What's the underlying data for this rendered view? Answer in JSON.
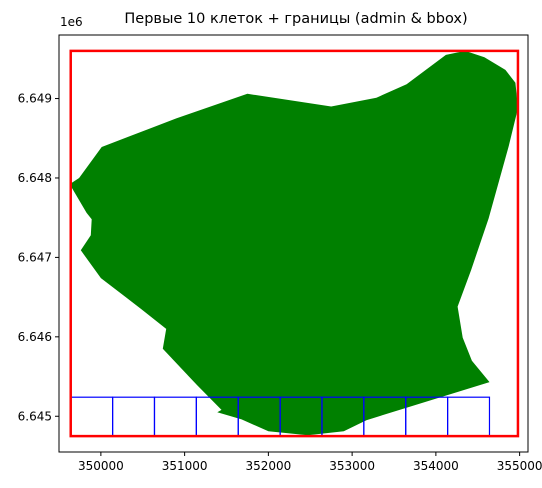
{
  "chart_data": {
    "type": "map",
    "title": "Первые 10 клеток + границы (admin & bbox)",
    "offset_label": "1e6",
    "xlim": [
      349500,
      355100
    ],
    "ylim": [
      6644550,
      6649800
    ],
    "x_ticks": [
      350000,
      351000,
      352000,
      353000,
      354000,
      355000
    ],
    "x_tick_labels": [
      "350000",
      "351000",
      "352000",
      "353000",
      "354000",
      "355000"
    ],
    "y_ticks": [
      6645000,
      6646000,
      6647000,
      6648000,
      6649000
    ],
    "y_tick_labels": [
      "6.645",
      "6.646",
      "6.647",
      "6.648",
      "6.649"
    ],
    "colors": {
      "admin_fill": "#008000",
      "bbox_edge": "#ff0000",
      "cells_edge": "#0000ff"
    },
    "admin_polygon": [
      [
        349640,
        6647930
      ],
      [
        349740,
        6648000
      ],
      [
        350010,
        6648390
      ],
      [
        350900,
        6648750
      ],
      [
        351750,
        6649060
      ],
      [
        352750,
        6648900
      ],
      [
        353290,
        6649010
      ],
      [
        353650,
        6649180
      ],
      [
        354120,
        6649550
      ],
      [
        354350,
        6649600
      ],
      [
        354580,
        6649520
      ],
      [
        354830,
        6649360
      ],
      [
        354950,
        6649200
      ],
      [
        354980,
        6648880
      ],
      [
        354870,
        6648400
      ],
      [
        354630,
        6647490
      ],
      [
        354420,
        6646840
      ],
      [
        354260,
        6646380
      ],
      [
        354320,
        6645990
      ],
      [
        354430,
        6645700
      ],
      [
        354640,
        6645430
      ],
      [
        353170,
        6644950
      ],
      [
        352900,
        6644810
      ],
      [
        352470,
        6644760
      ],
      [
        352000,
        6644810
      ],
      [
        351680,
        6644960
      ],
      [
        351390,
        6645050
      ],
      [
        351440,
        6645080
      ],
      [
        351150,
        6645390
      ],
      [
        350740,
        6645850
      ],
      [
        350780,
        6646100
      ],
      [
        350480,
        6646350
      ],
      [
        350000,
        6646740
      ],
      [
        349760,
        6647090
      ],
      [
        349880,
        6647280
      ],
      [
        349890,
        6647480
      ],
      [
        349830,
        6647560
      ],
      [
        349640,
        6647900
      ]
    ],
    "bbox": {
      "xmin": 349640,
      "ymin": 6644750,
      "xmax": 354980,
      "ymax": 6649600
    },
    "cells": {
      "count": 10,
      "x_start": 349640,
      "cell_width": 500,
      "ymin": 6644750,
      "ymax": 6645240
    }
  }
}
